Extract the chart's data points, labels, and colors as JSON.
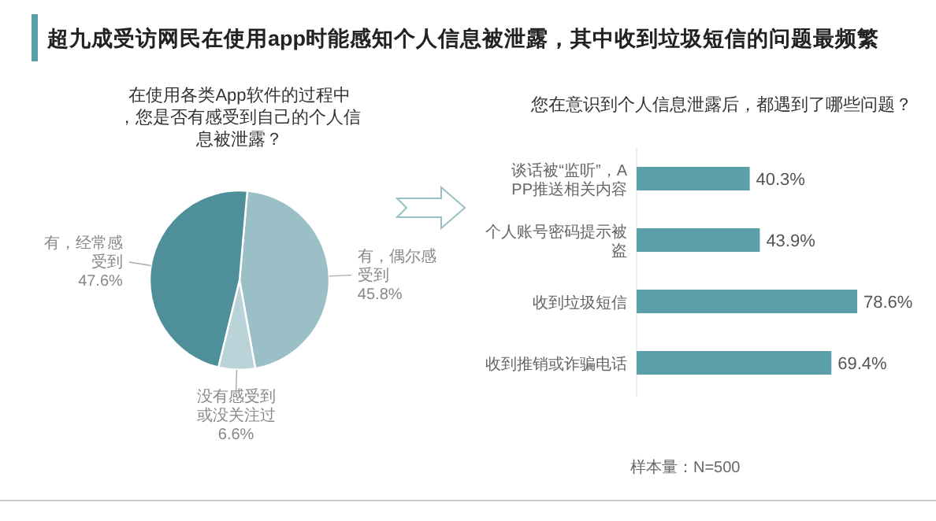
{
  "chart_data": [
    {
      "type": "pie",
      "title": "超九成受访网民在使用app时能感知个人信息被泄露，其中收到垃圾短信的问题最频繁",
      "subtitle": "在使用各类App软件的过程中，您是否有感受到自己的个人信息被泄露？",
      "categories": [
        "有，偶尔感受到",
        "没有感受到或没关注过",
        "有，经常感受到"
      ],
      "values": [
        45.8,
        6.6,
        47.6
      ],
      "value_labels": [
        "45.8%",
        "6.6%",
        "47.6%"
      ],
      "colors": [
        "#9bbfc6",
        "#b9d3d8",
        "#4e8f99"
      ]
    },
    {
      "type": "bar",
      "orientation": "horizontal",
      "subtitle": "您在意识到个人信息泄露后，都遇到了哪些问题？",
      "categories": [
        "谈话被“监听”，APP推送相关内容",
        "个人账号密码提示被盗",
        "收到垃圾短信",
        "收到推销或诈骗电话"
      ],
      "values": [
        40.3,
        43.9,
        78.6,
        69.4
      ],
      "value_labels": [
        "40.3%",
        "43.9%",
        "78.6%",
        "69.4%"
      ],
      "color": "#5b9fa8",
      "annotations": [
        "样本量：N=500"
      ]
    }
  ]
}
